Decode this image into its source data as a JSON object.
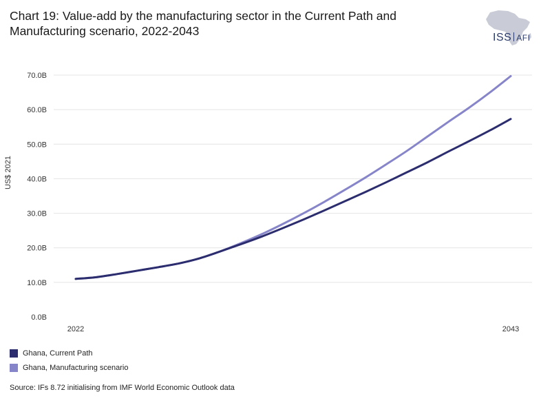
{
  "header": {
    "title": "Chart 19: Value-add by the manufacturing sector in the Current Path and Manufacturing scenario, 2022-2043"
  },
  "logo": {
    "iss": "ISS",
    "afi": "AFI",
    "icon": "africa-map-icon",
    "color": "#2a3a6a"
  },
  "footer": {
    "source": "Source: IFs 8.72 initialising from IMF World Economic Outlook data"
  },
  "chart_data": {
    "type": "line",
    "title": "Chart 19: Value-add by the manufacturing sector in the Current Path and Manufacturing scenario, 2022-2043",
    "xlabel": "",
    "ylabel": "US$ 2021",
    "x": [
      2022,
      2023,
      2024,
      2025,
      2026,
      2027,
      2028,
      2029,
      2030,
      2031,
      2032,
      2033,
      2034,
      2035,
      2036,
      2037,
      2038,
      2039,
      2040,
      2041,
      2042,
      2043
    ],
    "x_tick_labels": [
      "2022",
      "2043"
    ],
    "y_tick_labels": [
      "0.0B",
      "10.0B",
      "20.0B",
      "30.0B",
      "40.0B",
      "50.0B",
      "60.0B",
      "70.0B"
    ],
    "ylim": [
      0,
      70
    ],
    "xlim": [
      2022,
      2043
    ],
    "grid": true,
    "legend_position": "bottom-left",
    "series": [
      {
        "name": "Ghana, Current Path",
        "color": "#2b2d6e",
        "values": [
          11.0,
          11.5,
          12.4,
          13.4,
          14.4,
          15.5,
          17.0,
          19.0,
          21.1,
          23.3,
          25.7,
          28.2,
          30.8,
          33.5,
          36.2,
          39.0,
          41.9,
          44.8,
          47.9,
          50.9,
          54.0,
          57.3
        ]
      },
      {
        "name": "Ghana, Manufacturing scenario",
        "color": "#8785c9",
        "values": [
          11.0,
          11.5,
          12.4,
          13.4,
          14.4,
          15.5,
          17.0,
          19.0,
          21.4,
          24.0,
          26.9,
          30.0,
          33.3,
          36.8,
          40.4,
          44.2,
          48.1,
          52.3,
          56.5,
          60.6,
          65.0,
          69.7
        ]
      }
    ]
  }
}
